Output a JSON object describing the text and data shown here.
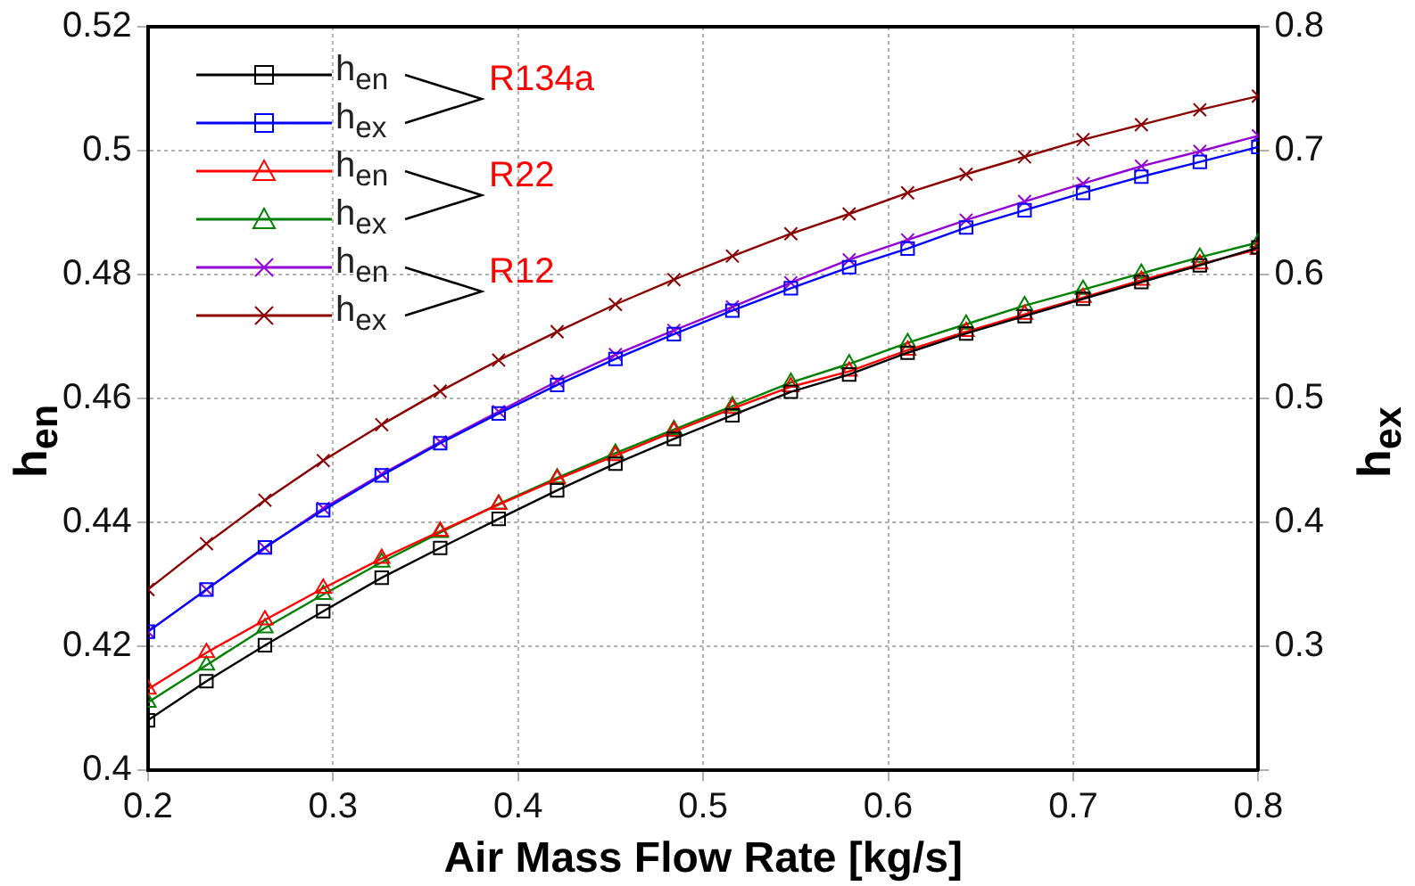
{
  "chart_data": {
    "type": "line",
    "xlabel": "Air Mass Flow Rate [kg/s]",
    "ylabel": "h$_{en}$",
    "y2label": "h$_{ex}$",
    "x": [
      0.2,
      0.2316,
      0.2632,
      0.2947,
      0.3263,
      0.3579,
      0.3895,
      0.4211,
      0.4526,
      0.4842,
      0.5158,
      0.5474,
      0.5789,
      0.6105,
      0.6421,
      0.6737,
      0.7053,
      0.7368,
      0.7684,
      0.8
    ],
    "series": [
      {
        "name": "h$_{en}$",
        "color": "#000000",
        "marker": "square",
        "values": [
          0.4081,
          0.4144,
          0.4202,
          0.4257,
          0.4311,
          0.4359,
          0.4406,
          0.4452,
          0.4495,
          0.4535,
          0.4573,
          0.4611,
          0.4639,
          0.4674,
          0.4705,
          0.4733,
          0.4761,
          0.4788,
          0.4815,
          0.4844
        ]
      },
      {
        "name": "h$_{ex}$",
        "color": "#0000ff",
        "marker": "square",
        "axis": "y2",
        "values": [
          0.312,
          0.346,
          0.38,
          0.41,
          0.438,
          0.464,
          0.488,
          0.511,
          0.532,
          0.552,
          0.571,
          0.589,
          0.606,
          0.621,
          0.638,
          0.652,
          0.666,
          0.679,
          0.691,
          0.703
        ]
      },
      {
        "name": "h$_{en}$",
        "color": "#ff0000",
        "marker": "triangle",
        "values": [
          0.4131,
          0.419,
          0.4243,
          0.4294,
          0.4342,
          0.4386,
          0.4429,
          0.447,
          0.4508,
          0.4547,
          0.4584,
          0.4619,
          0.4644,
          0.4678,
          0.4708,
          0.4736,
          0.4763,
          0.4791,
          0.4817,
          0.4841
        ]
      },
      {
        "name": "h$_{ex}$",
        "color": "#008000",
        "marker": "triangle",
        "axis": "y2",
        "values": [
          0.255,
          0.285,
          0.315,
          0.342,
          0.368,
          0.392,
          0.415,
          0.436,
          0.456,
          0.475,
          0.494,
          0.513,
          0.528,
          0.545,
          0.56,
          0.575,
          0.588,
          0.601,
          0.614,
          0.626
        ]
      },
      {
        "name": "h$_{en}$",
        "color": "#9400d3",
        "marker": "cross",
        "values": [
          0.4224,
          0.4292,
          0.4359,
          0.4423,
          0.4478,
          0.453,
          0.4579,
          0.4628,
          0.4671,
          0.471,
          0.4748,
          0.4787,
          0.4824,
          0.4856,
          0.4888,
          0.4918,
          0.4947,
          0.4975,
          0.4999,
          0.5024
        ]
      },
      {
        "name": "h$_{ex}$",
        "color": "#8b0000",
        "marker": "cross",
        "axis": "y2",
        "values": [
          0.346,
          0.383,
          0.418,
          0.45,
          0.479,
          0.506,
          0.531,
          0.554,
          0.576,
          0.596,
          0.615,
          0.633,
          0.649,
          0.666,
          0.681,
          0.695,
          0.709,
          0.721,
          0.733,
          0.744
        ]
      }
    ],
    "annotations": [
      "R134a",
      "R22",
      "R12"
    ],
    "xlim": [
      0.2,
      0.8
    ],
    "xticks": [
      0.2,
      0.3,
      0.4,
      0.5,
      0.6,
      0.7,
      0.8
    ],
    "ylim": [
      0.4,
      0.52
    ],
    "yticks": [
      0.4,
      0.42,
      0.44,
      0.46,
      0.48,
      0.5,
      0.52
    ],
    "y2lim": [
      0.2,
      0.8
    ],
    "y2ticks": [
      {
        "value": 0.2,
        "label": null
      },
      0.3,
      0.4,
      0.5,
      0.6,
      0.7,
      0.8
    ],
    "grid": true,
    "legend": "top left",
    "line_style": "solid"
  }
}
